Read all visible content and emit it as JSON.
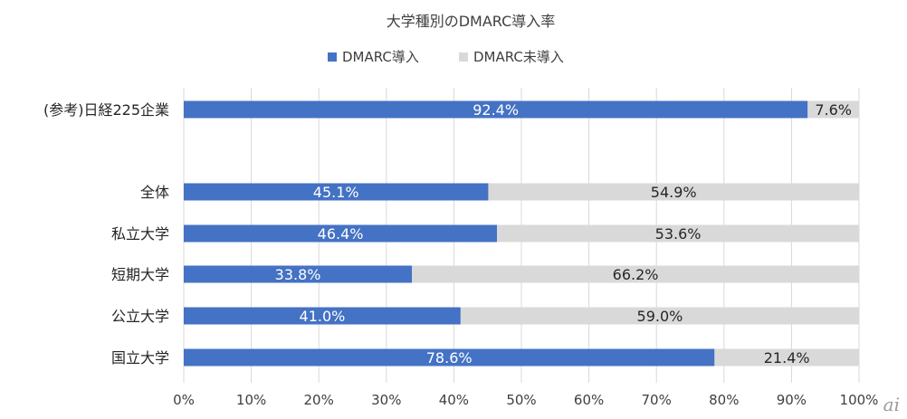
{
  "chart_data": {
    "type": "bar",
    "orientation": "horizontal",
    "stacked": true,
    "title": "大学種別のDMARC導入率",
    "categories": [
      "(参考)日経225企業",
      "全体",
      "私立大学",
      "短期大学",
      "公立大学",
      "国立大学"
    ],
    "series": [
      {
        "name": "DMARC導入",
        "values": [
          92.4,
          45.1,
          46.4,
          33.8,
          41.0,
          78.6
        ],
        "labels": [
          "92.4%",
          "45.1%",
          "46.4%",
          "33.8%",
          "41.0%",
          "78.6%"
        ],
        "color": "#4472c4"
      },
      {
        "name": "DMARC未導入",
        "values": [
          7.6,
          54.9,
          53.6,
          66.2,
          59.0,
          21.4
        ],
        "labels": [
          "7.6%",
          "54.9%",
          "53.6%",
          "66.2%",
          "59.0%",
          "21.4%"
        ],
        "color": "#d9d9d9"
      }
    ],
    "xlim": [
      0,
      100
    ],
    "x_ticks": [
      "0%",
      "10%",
      "20%",
      "30%",
      "40%",
      "50%",
      "60%",
      "70%",
      "80%",
      "90%",
      "100%"
    ],
    "grid": true,
    "legend_position": "top",
    "gap_after_first_category": true
  },
  "watermark": "ai"
}
